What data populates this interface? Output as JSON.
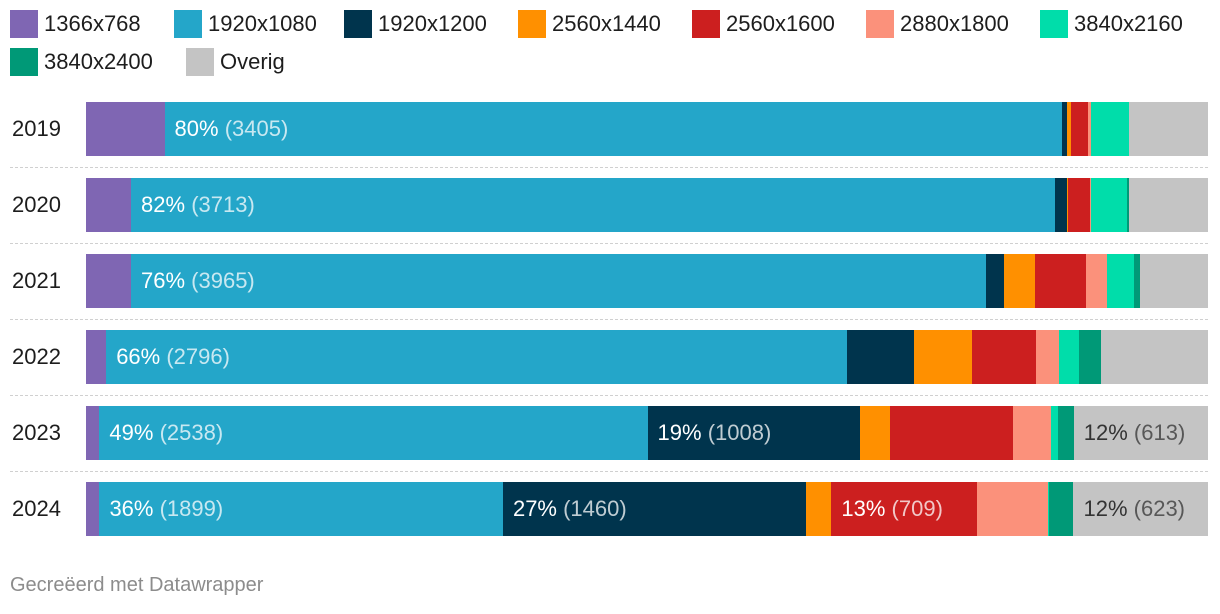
{
  "chart_data": {
    "type": "bar",
    "orientation": "horizontal",
    "stacked": true,
    "categories": [
      "2019",
      "2020",
      "2021",
      "2022",
      "2023",
      "2024"
    ],
    "series": [
      {
        "name": "1366x768",
        "color": "#7f66b3",
        "values": [
          7,
          4,
          4,
          1.8,
          1.2,
          1.2
        ]
      },
      {
        "name": "1920x1080",
        "color": "#24a6c9",
        "values": [
          80,
          82,
          76,
          66,
          49,
          36
        ]
      },
      {
        "name": "1920x1200",
        "color": "#00344d",
        "values": [
          0.4,
          1.1,
          1.6,
          6,
          19,
          27
        ]
      },
      {
        "name": "2560x1440",
        "color": "#ff9000",
        "values": [
          0.4,
          0.1,
          2.7,
          5.2,
          2.7,
          2.3
        ]
      },
      {
        "name": "2560x1600",
        "color": "#cc1f1f",
        "values": [
          1.5,
          1.9,
          4.6,
          5.7,
          11,
          13
        ]
      },
      {
        "name": "2880x1800",
        "color": "#fb917b",
        "values": [
          0.3,
          0.1,
          1.8,
          2,
          3.4,
          6.3
        ]
      },
      {
        "name": "3840x2160",
        "color": "#00ddaa",
        "values": [
          3.4,
          3.2,
          2.4,
          1.8,
          0.6,
          0.1
        ]
      },
      {
        "name": "3840x2400",
        "color": "#009977",
        "values": [
          0,
          0.2,
          0.6,
          2,
          1.4,
          2.2
        ]
      },
      {
        "name": "Overig",
        "color": "#c4c4c4",
        "values": [
          7,
          7,
          6,
          9.5,
          12,
          12
        ]
      }
    ],
    "labels": [
      [
        {
          "series": 1,
          "pct": "80%",
          "count": "(3405)"
        }
      ],
      [
        {
          "series": 1,
          "pct": "82%",
          "count": "(3713)"
        }
      ],
      [
        {
          "series": 1,
          "pct": "76%",
          "count": "(3965)"
        }
      ],
      [
        {
          "series": 1,
          "pct": "66%",
          "count": "(2796)"
        }
      ],
      [
        {
          "series": 1,
          "pct": "49%",
          "count": "(2538)"
        },
        {
          "series": 2,
          "pct": "19%",
          "count": "(1008)"
        },
        {
          "series": 8,
          "pct": "12%",
          "count": "(613)"
        }
      ],
      [
        {
          "series": 1,
          "pct": "36%",
          "count": "(1899)"
        },
        {
          "series": 2,
          "pct": "27%",
          "count": "(1460)"
        },
        {
          "series": 4,
          "pct": "13%",
          "count": "(709)"
        },
        {
          "series": 8,
          "pct": "12%",
          "count": "(623)"
        }
      ]
    ],
    "xlim": [
      0,
      100
    ],
    "legend": "top",
    "grid": false
  },
  "footer": {
    "credit": "Gecreëerd met Datawrapper"
  }
}
